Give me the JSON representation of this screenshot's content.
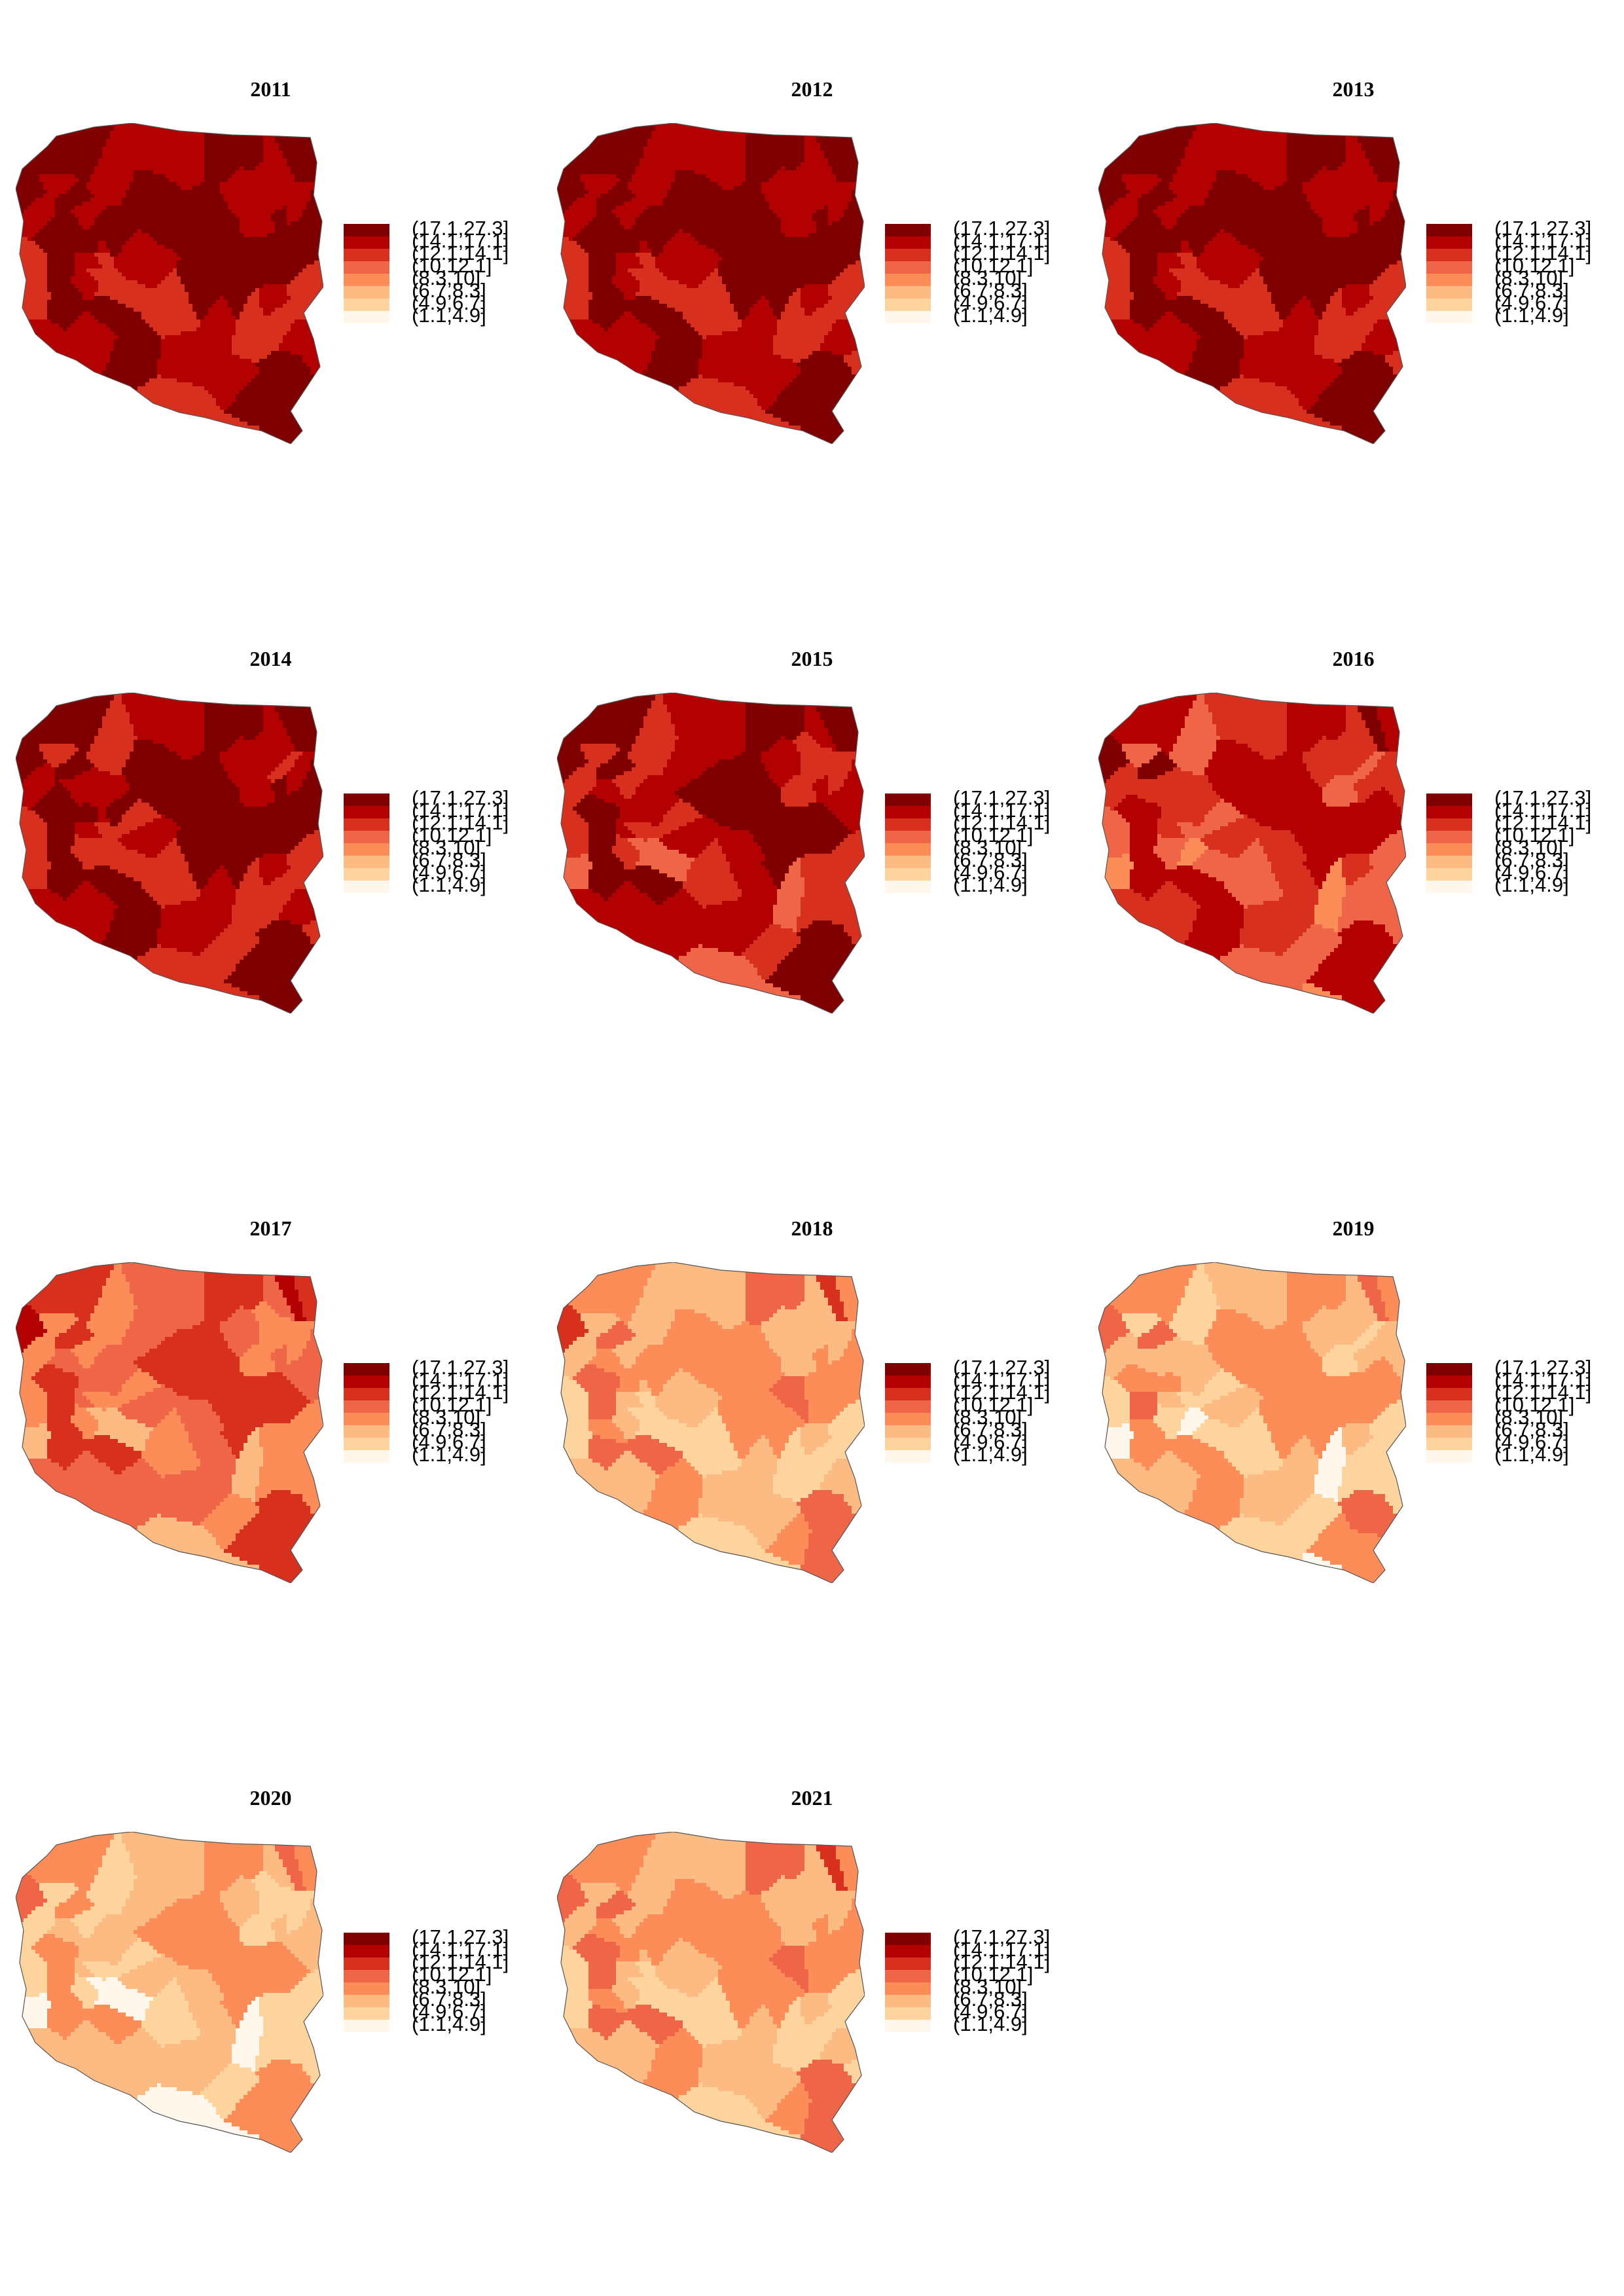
{
  "legend": {
    "bins": [
      "(17.1,27.3]",
      "(14.1,17.1]",
      "(12.1,14.1]",
      "(10,12.1]",
      "(8.3,10]",
      "(6.7,8.3]",
      "(4.9,6.7]",
      "(1.1,4.9]"
    ],
    "colors": [
      "#7f0000",
      "#b30000",
      "#d7301f",
      "#ef6548",
      "#fc8d59",
      "#fdbb84",
      "#fdd49e",
      "#fff7ec"
    ]
  },
  "maps": [
    {
      "year": "2011",
      "palette_level": 6.6
    },
    {
      "year": "2012",
      "palette_level": 6.5
    },
    {
      "year": "2013",
      "palette_level": 6.5
    },
    {
      "year": "2014",
      "palette_level": 6.4
    },
    {
      "year": "2015",
      "palette_level": 5.9
    },
    {
      "year": "2016",
      "palette_level": 5.1
    },
    {
      "year": "2017",
      "palette_level": 3.9
    },
    {
      "year": "2018",
      "palette_level": 2.6
    },
    {
      "year": "2019",
      "palette_level": 2.2
    },
    {
      "year": "2020",
      "palette_level": 1.9
    },
    {
      "year": "2021",
      "palette_level": 2.5
    }
  ]
}
